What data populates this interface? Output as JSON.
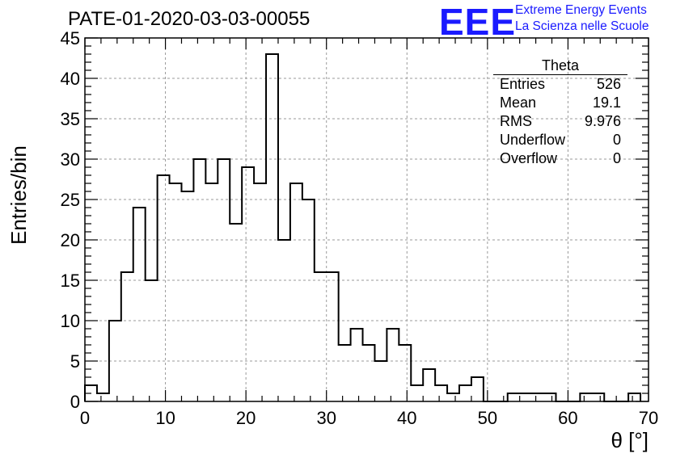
{
  "title": "PATE-01-2020-03-03-00055",
  "logo": {
    "mark": "EEE",
    "line1": "Extreme Energy Events",
    "line2": "La Scienza nelle Scuole",
    "color": "#1a1aff"
  },
  "stats": {
    "title": "Theta",
    "rows": [
      {
        "label": "Entries",
        "value": "526"
      },
      {
        "label": "Mean",
        "value": "19.1"
      },
      {
        "label": "RMS",
        "value": "9.976"
      },
      {
        "label": "Underflow",
        "value": "0"
      },
      {
        "label": "Overflow",
        "value": "0"
      }
    ]
  },
  "chart_data": {
    "type": "bar",
    "title": "PATE-01-2020-03-03-00055",
    "xlabel": "θ [°]",
    "ylabel": "Entries/bin",
    "xlim": [
      0,
      70
    ],
    "ylim": [
      0,
      45
    ],
    "xticks": [
      0,
      10,
      20,
      30,
      40,
      50,
      60,
      70
    ],
    "yticks": [
      0,
      5,
      10,
      15,
      20,
      25,
      30,
      35,
      40,
      45
    ],
    "grid": true,
    "bin_edges_start": 0,
    "bin_width": 1.5,
    "values": [
      2,
      1,
      10,
      16,
      24,
      15,
      28,
      27,
      26,
      30,
      27,
      30,
      22,
      29,
      27,
      43,
      20,
      27,
      25,
      16,
      16,
      7,
      9,
      7,
      5,
      9,
      7,
      2,
      4,
      2,
      1,
      2,
      3,
      0,
      0,
      1,
      1,
      1,
      1,
      0,
      0,
      1,
      1,
      0,
      0,
      1
    ],
    "line_color": "#000000"
  }
}
